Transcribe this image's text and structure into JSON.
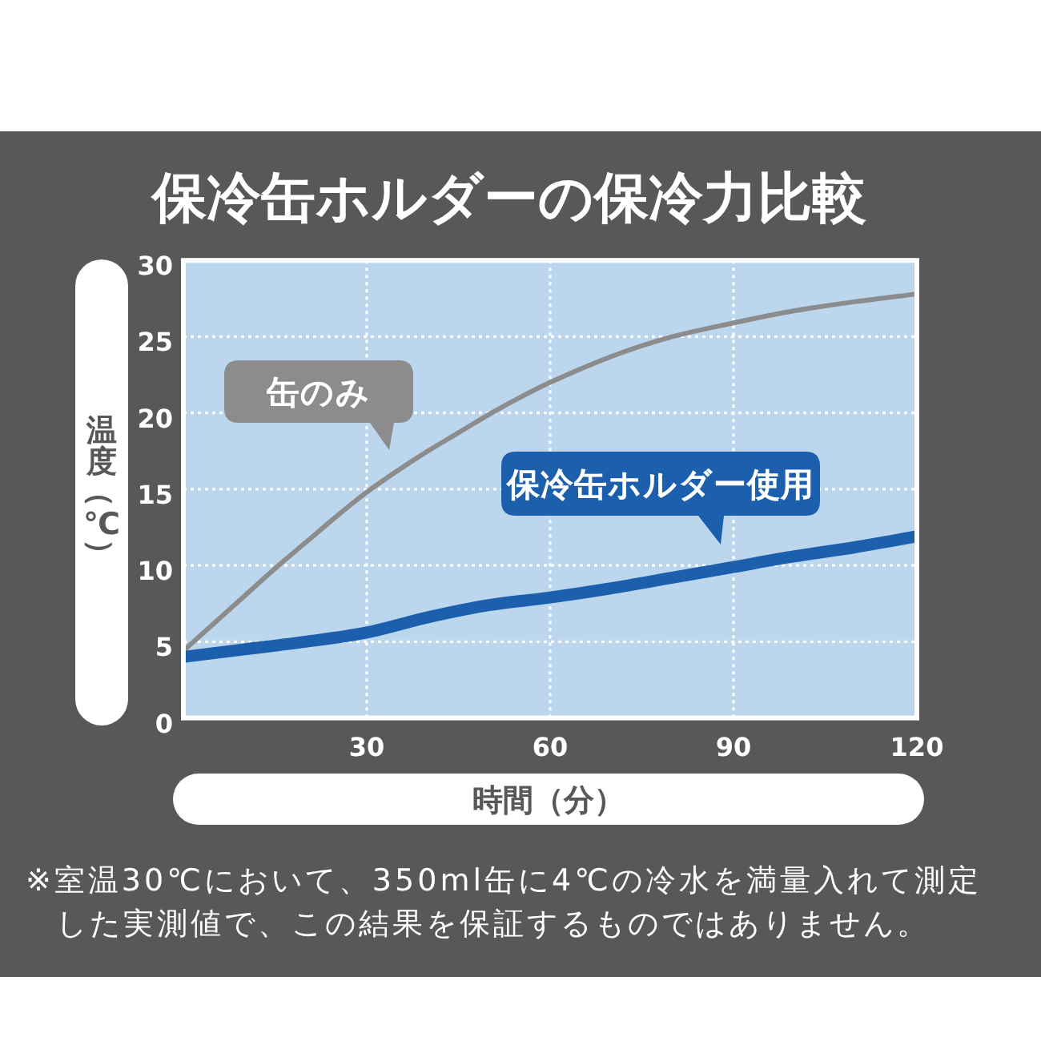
{
  "chart_data": {
    "type": "line",
    "title": "保冷缶ホルダーの保冷力比較",
    "xlabel": "時間（分）",
    "ylabel": "温度（℃）",
    "xlim": [
      0,
      120
    ],
    "ylim": [
      0,
      30
    ],
    "xticks": [
      {
        "value": 0,
        "label": null
      },
      30,
      60,
      90,
      120
    ],
    "yticks": [
      0,
      5,
      10,
      15,
      20,
      25,
      30
    ],
    "grid": true,
    "marker": "none",
    "line_style": "solid",
    "series": [
      {
        "name": "缶のみ",
        "color": "#8c8c8c",
        "x": [
          0,
          5,
          10,
          15,
          20,
          25,
          30,
          35,
          40,
          45,
          50,
          55,
          60,
          70,
          80,
          90,
          100,
          110,
          120
        ],
        "values": [
          4.4,
          6.2,
          8.0,
          9.8,
          11.5,
          13.2,
          14.8,
          16.2,
          17.5,
          18.7,
          19.9,
          21.0,
          22.0,
          23.7,
          25.0,
          25.9,
          26.7,
          27.3,
          27.8
        ]
      },
      {
        "name": "保冷缶ホルダー使用",
        "color": "#1b5fad",
        "x": [
          0,
          10,
          20,
          30,
          40,
          50,
          60,
          70,
          80,
          90,
          100,
          110,
          120
        ],
        "values": [
          4.0,
          4.5,
          5.0,
          5.6,
          6.6,
          7.4,
          7.9,
          8.5,
          9.2,
          9.9,
          10.6,
          11.2,
          11.9
        ]
      }
    ],
    "annotations": [
      "※室温30℃において、350ml缶に4℃の冷水を満量入れて測定した実測値で、この結果を保証するものではありません。"
    ]
  }
}
